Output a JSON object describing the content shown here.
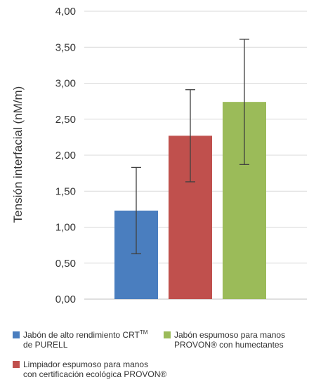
{
  "chart_data": {
    "type": "bar",
    "ylabel": "Tensión interfacial (nM/m)",
    "ylim": [
      0,
      4
    ],
    "ytick_labels": [
      "0,00",
      "0,50",
      "1,00",
      "1,50",
      "2,00",
      "2,50",
      "3,00",
      "3,50",
      "4,00"
    ],
    "grid": true,
    "legend_position": "bottom",
    "series": [
      {
        "name": "Jabón de alto rendimiento CRT™ de PURELL",
        "value": 1.23,
        "error": 0.6,
        "color": "#4a7ebf"
      },
      {
        "name": "Limpiador espumoso para manos con certificación ecológica PROVON®",
        "value": 2.27,
        "error": 0.64,
        "color": "#c0504d"
      },
      {
        "name": "Jabón espumoso para manos PROVON® con humectantes",
        "value": 2.74,
        "error": 0.87,
        "color": "#9bbb59"
      }
    ]
  },
  "legend": {
    "item1_line1": "Jabón de alto rendimiento CRT",
    "item1_sup": "TM",
    "item1_line2": "de PURELL",
    "item2_line1": "Limpiador espumoso para manos",
    "item2_line2": "con certificación ecológica PROVON®",
    "item3_line1": "Jabón espumoso para manos",
    "item3_line2": "PROVON® con humectantes"
  }
}
